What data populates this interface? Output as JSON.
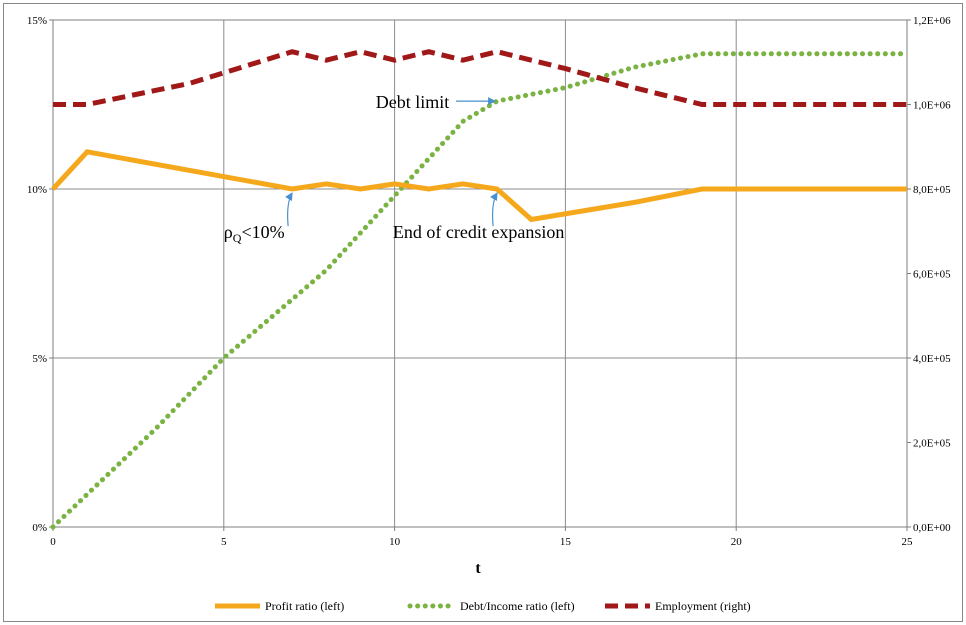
{
  "chart_data": {
    "type": "line",
    "xlabel": "t",
    "xlim": [
      0,
      25
    ],
    "x_ticks": [
      0,
      5,
      10,
      15,
      20,
      25
    ],
    "ylim_left": [
      0,
      15
    ],
    "y_left_ticks": [
      0,
      5,
      10,
      15
    ],
    "y_left_tick_labels": [
      "0%",
      "5%",
      "10%",
      "15%"
    ],
    "ylim_right": [
      0,
      1200000
    ],
    "y_right_ticks": [
      0,
      200000,
      400000,
      600000,
      800000,
      1000000,
      1200000
    ],
    "y_right_tick_labels": [
      "0,0E+00",
      "2,0E+05",
      "4,0E+05",
      "6,0E+05",
      "8,0E+05",
      "1,0E+06",
      "1,2E+06"
    ],
    "grid": true,
    "legend_position": "bottom",
    "series": [
      {
        "name": "Profit ratio (left)",
        "axis": "left",
        "style": "solid",
        "color": "#f5a81c",
        "x": [
          0,
          1,
          7,
          8,
          9,
          10,
          11,
          12,
          13,
          14,
          17,
          19,
          25
        ],
        "y": [
          10,
          11.1,
          10,
          10.15,
          10,
          10.15,
          10,
          10.15,
          10,
          9.1,
          9.6,
          10,
          10
        ]
      },
      {
        "name": "Debt/Income ratio (left)",
        "axis": "left",
        "style": "dotted",
        "color": "#7bb342",
        "x": [
          0,
          3,
          5,
          8,
          10,
          12,
          13,
          15,
          17,
          19,
          25
        ],
        "y": [
          0,
          2.9,
          5,
          7.6,
          9.8,
          12,
          12.6,
          13,
          13.6,
          14,
          14
        ]
      },
      {
        "name": "Employment (right)",
        "axis": "right",
        "style": "dashed",
        "color": "#a01818",
        "x": [
          0,
          1,
          4,
          6,
          7,
          8,
          9,
          10,
          11,
          12,
          13,
          15,
          17,
          19,
          25
        ],
        "y": [
          1000000,
          1000000,
          1050000,
          1100000,
          1125000,
          1105000,
          1125000,
          1105000,
          1125000,
          1105000,
          1125000,
          1085000,
          1040000,
          1000000,
          1000000
        ]
      }
    ],
    "annotations": [
      {
        "text": "Debt limit",
        "target_x": 13,
        "target_y": 12.6,
        "axis": "left"
      },
      {
        "text": "End of credit expansion",
        "target_x": 13,
        "target_y": 10,
        "axis": "left"
      },
      {
        "text": "<10%",
        "symbol": "ρ",
        "subscript": "Q",
        "target_x": 7,
        "target_y": 10,
        "axis": "left"
      }
    ]
  }
}
